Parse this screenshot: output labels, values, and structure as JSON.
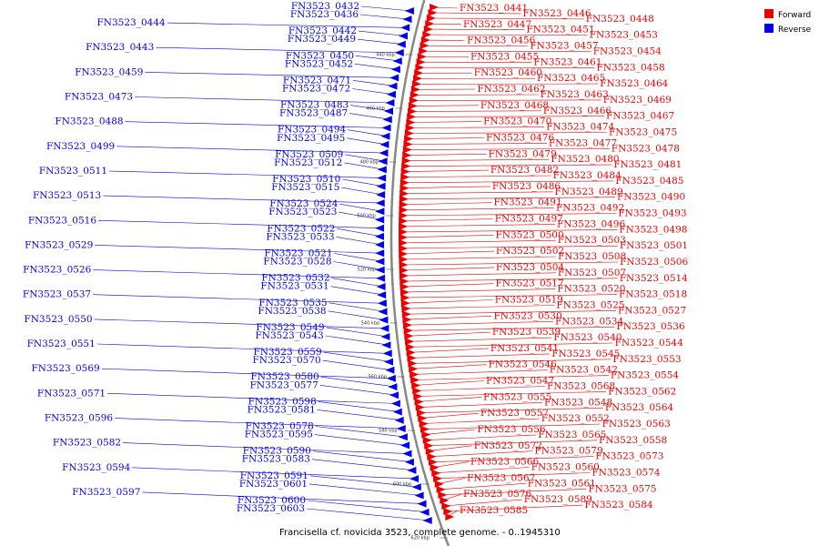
{
  "caption": "Francisella cf. novicida 3523, complete genome. - 0..1945310",
  "legend": [
    {
      "label": "Forward",
      "color": "#ee0000"
    },
    {
      "label": "Reverse",
      "color": "#0000ee"
    }
  ],
  "colors": {
    "forward": "#ee0000",
    "reverse": "#0000ee",
    "backbone": "#888888"
  },
  "ticks": [
    "440 kbp",
    "460 kbp",
    "480 kbp",
    "500 kbp",
    "520 kbp",
    "540 kbp",
    "560 kbp",
    "580 kbp",
    "600 kbp",
    "620 kbp"
  ],
  "reverse_labels": [
    "FN3523_0432",
    "FN3523_0436",
    "FN3523_0444",
    "FN3523_0442",
    "FN3523_0449",
    "FN3523_0443",
    "FN3523_0450",
    "FN3523_0452",
    "FN3523_0459",
    "FN3523_0471",
    "FN3523_0472",
    "FN3523_0473",
    "FN3523_0483",
    "FN3523_0487",
    "FN3523_0488",
    "FN3523_0494",
    "FN3523_0495",
    "FN3523_0499",
    "FN3523_0509",
    "FN3523_0512",
    "FN3523_0511",
    "FN3523_0510",
    "FN3523_0515",
    "FN3523_0513",
    "FN3523_0524",
    "FN3523_0523",
    "FN3523_0516",
    "FN3523_0522",
    "FN3523_0533",
    "FN3523_0529",
    "FN3523_0521",
    "FN3523_0528",
    "FN3523_0526",
    "FN3523_0532",
    "FN3523_0531",
    "FN3523_0537",
    "FN3523_0535",
    "FN3523_0538",
    "FN3523_0550",
    "FN3523_0549",
    "FN3523_0543",
    "FN3523_0551",
    "FN3523_0559",
    "FN3523_0570",
    "FN3523_0569",
    "FN3523_0580",
    "FN3523_0577",
    "FN3523_0571",
    "FN3523_0598",
    "FN3523_0581",
    "FN3523_0596",
    "FN3523_0578",
    "FN3523_0595",
    "FN3523_0582",
    "FN3523_0590",
    "FN3523_0583",
    "FN3523_0594",
    "FN3523_0591",
    "FN3523_0601",
    "FN3523_0597",
    "FN3523_0600",
    "FN3523_0603"
  ],
  "forward_labels": [
    "FN3523_0441",
    "FN3523_0446",
    "FN3523_0448",
    "FN3523_0447",
    "FN3523_0451",
    "FN3523_0453",
    "FN3523_0456",
    "FN3523_0457",
    "FN3523_0454",
    "FN3523_0455",
    "FN3523_0461",
    "FN3523_0458",
    "FN3523_0460",
    "FN3523_0465",
    "FN3523_0464",
    "FN3523_0462",
    "FN3523_0463",
    "FN3523_0469",
    "FN3523_0468",
    "FN3523_0466",
    "FN3523_0467",
    "FN3523_0470",
    "FN3523_0474",
    "FN3523_0475",
    "FN3523_0476",
    "FN3523_0477",
    "FN3523_0478",
    "FN3523_0479",
    "FN3523_0480",
    "FN3523_0481",
    "FN3523_0482",
    "FN3523_0484",
    "FN3523_0485",
    "FN3523_0486",
    "FN3523_0489",
    "FN3523_0490",
    "FN3523_0491",
    "FN3523_0492",
    "FN3523_0493",
    "FN3523_0497",
    "FN3523_0496",
    "FN3523_0498",
    "FN3523_0500",
    "FN3523_0503",
    "FN3523_0501",
    "FN3523_0502",
    "FN3523_0508",
    "FN3523_0506",
    "FN3523_0504",
    "FN3523_0507",
    "FN3523_0514",
    "FN3523_0517",
    "FN3523_0520",
    "FN3523_0518",
    "FN3523_0519",
    "FN3523_0525",
    "FN3523_0527",
    "FN3523_0530",
    "FN3523_0534",
    "FN3523_0536",
    "FN3523_0539",
    "FN3523_0540",
    "FN3523_0544",
    "FN3523_0541",
    "FN3523_0545",
    "FN3523_0553",
    "FN3523_0546",
    "FN3523_0542",
    "FN3523_0554",
    "FN3523_0547",
    "FN3523_0568",
    "FN3523_0562",
    "FN3523_0555",
    "FN3523_0548",
    "FN3523_0564",
    "FN3523_0557",
    "FN3523_0552",
    "FN3523_0563",
    "FN3523_0556",
    "FN3523_0565",
    "FN3523_0558",
    "FN3523_0572",
    "FN3523_0579",
    "FN3523_0573",
    "FN3523_0566",
    "FN3523_0560",
    "FN3523_0574",
    "FN3523_0567",
    "FN3523_0561",
    "FN3523_0575",
    "FN3523_0576",
    "FN3523_0589",
    "FN3523_0584",
    "FN3523_0585"
  ]
}
